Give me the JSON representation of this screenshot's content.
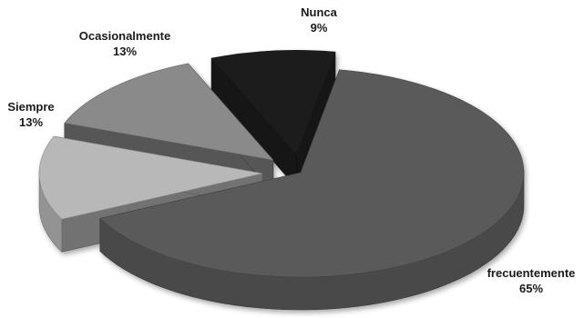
{
  "chart_data": {
    "type": "pie",
    "title": "",
    "style": "3d-exploded",
    "slices": [
      {
        "label": "frecuentemente",
        "value": 65,
        "display": "65%",
        "color": "#5a5a5a"
      },
      {
        "label": "Siempre",
        "value": 13,
        "display": "13%",
        "color": "#b8b8b8"
      },
      {
        "label": "Ocasionalmente",
        "value": 13,
        "display": "13%",
        "color": "#8a8a8a"
      },
      {
        "label": "Nunca",
        "value": 9,
        "display": "9%",
        "color": "#1e1e1e"
      }
    ]
  }
}
